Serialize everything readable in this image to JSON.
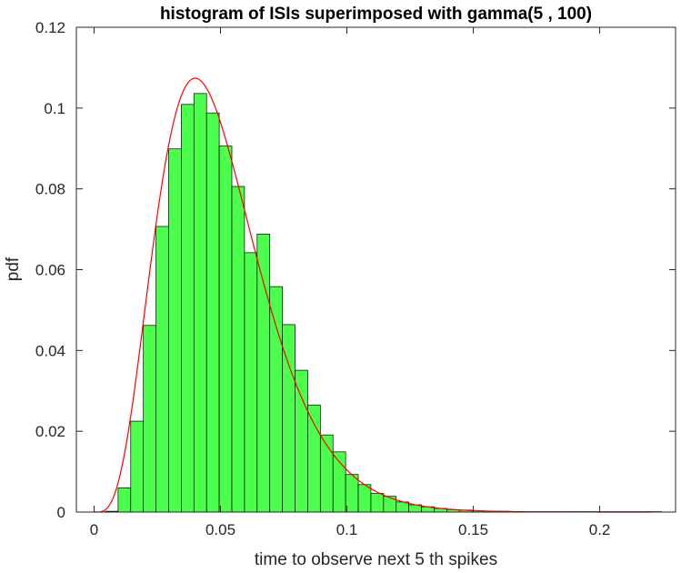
{
  "chart_data": {
    "type": "bar",
    "title": "histogram of ISIs superimposed with gamma(5 , 100)",
    "xlabel": "time to observe next 5 th spikes",
    "ylabel": "pdf",
    "xlim": [
      -0.007,
      0.23
    ],
    "ylim": [
      0,
      0.12
    ],
    "xticks": [
      0,
      0.05,
      0.1,
      0.15,
      0.2
    ],
    "xtick_labels": [
      "0",
      "0.05",
      "0.1",
      "0.15",
      "0.2"
    ],
    "yticks": [
      0,
      0.02,
      0.04,
      0.06,
      0.08,
      0.1,
      0.12
    ],
    "ytick_labels": [
      "0",
      "0.02",
      "0.04",
      "0.06",
      "0.08",
      "0.1",
      "0.12"
    ],
    "grid": false,
    "bin_edges_start": 0.0045,
    "bin_width": 0.005,
    "values": [
      0.0002,
      0.006,
      0.0225,
      0.0462,
      0.0707,
      0.0899,
      0.1009,
      0.1036,
      0.0988,
      0.0906,
      0.0806,
      0.0642,
      0.0688,
      0.0558,
      0.0464,
      0.0351,
      0.0265,
      0.0191,
      0.0149,
      0.0093,
      0.0068,
      0.0046,
      0.0039,
      0.0025,
      0.0018,
      0.0013,
      0.0009,
      0.0006,
      0.0005,
      0.0003,
      0.0002,
      0.0002,
      0.0001,
      0.0001,
      0.0001,
      0.0001,
      0.0001,
      0.0001,
      0.0001,
      0.0001,
      0.0001,
      0.0001,
      0.0001,
      0.0001
    ],
    "bar_color": "#4dff4d",
    "bar_edge_color": "#000000",
    "curve": {
      "distribution": "gamma",
      "shape": 5,
      "rate": 100,
      "x_max": 0.22,
      "color": "#ff0000"
    }
  }
}
